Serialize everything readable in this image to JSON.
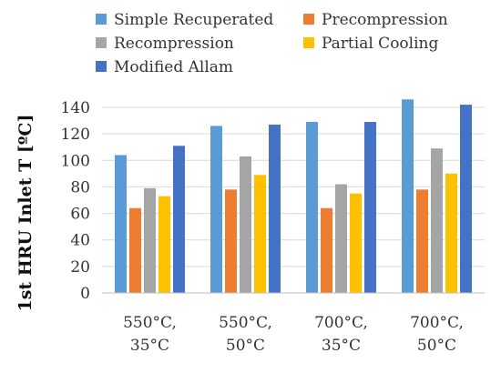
{
  "chart_data": {
    "type": "bar",
    "title": "",
    "xlabel": "",
    "ylabel": "1st  HRU Inlet T [ºC]",
    "ylim": [
      0,
      140
    ],
    "ytick_step": 20,
    "grid": true,
    "legend_position": "top",
    "categories": [
      [
        "550°C,",
        "35°C"
      ],
      [
        "550°C,",
        "50°C"
      ],
      [
        "700°C,",
        "35°C"
      ],
      [
        "700°C,",
        "50°C"
      ]
    ],
    "series": [
      {
        "name": "Simple Recuperated",
        "color": "#5B9BD5",
        "values": [
          104,
          126,
          129,
          146
        ]
      },
      {
        "name": "Precompression",
        "color": "#ED7D31",
        "values": [
          64,
          78,
          64,
          78
        ]
      },
      {
        "name": "Recompression",
        "color": "#A5A5A5",
        "values": [
          79,
          103,
          82,
          109
        ]
      },
      {
        "name": "Partial Cooling",
        "color": "#FFC000",
        "values": [
          73,
          89,
          75,
          90
        ]
      },
      {
        "name": "Modified Allam",
        "color": "#4472C4",
        "values": [
          111,
          127,
          129,
          142
        ]
      }
    ]
  }
}
